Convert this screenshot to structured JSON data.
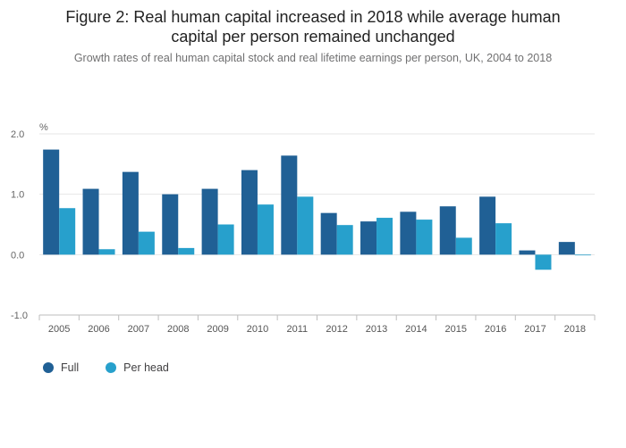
{
  "title_line1": "Figure 2: Real human capital increased in 2018 while average human",
  "title_line2": "capital per person remained unchanged",
  "subtitle": "Growth rates of real human capital stock and real lifetime earnings per person, UK, 2004 to 2018",
  "colors": {
    "full": "#206095",
    "per_head": "#27a0cc",
    "grid": "#e6e6e6",
    "axis": "#bebebe"
  },
  "chart_data": {
    "type": "bar",
    "unit_label": "%",
    "categories": [
      "2005",
      "2006",
      "2007",
      "2008",
      "2009",
      "2010",
      "2011",
      "2012",
      "2013",
      "2014",
      "2015",
      "2016",
      "2017",
      "2018"
    ],
    "series": [
      {
        "name": "Full",
        "values": [
          1.74,
          1.09,
          1.37,
          1.0,
          1.09,
          1.4,
          1.64,
          0.69,
          0.55,
          0.71,
          0.8,
          0.96,
          0.07,
          0.21
        ]
      },
      {
        "name": "Per head",
        "values": [
          0.77,
          0.09,
          0.38,
          0.11,
          0.5,
          0.83,
          0.96,
          0.49,
          0.61,
          0.58,
          0.28,
          0.52,
          -0.25,
          -0.01
        ]
      }
    ],
    "y_ticks": [
      "2.0",
      "1.0",
      "0.0",
      "-1.0"
    ],
    "ylim": [
      -1.0,
      2.0
    ],
    "grid": true,
    "legend_position": "bottom-left"
  }
}
